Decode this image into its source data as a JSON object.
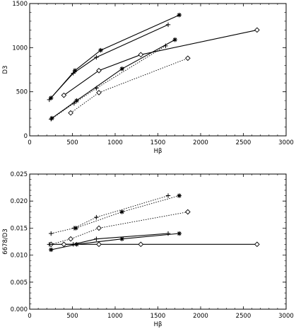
{
  "chart_data": [
    {
      "type": "line",
      "xlabel": "Hβ",
      "ylabel": "D3",
      "xlim": [
        0,
        3000
      ],
      "ylim": [
        0,
        1500
      ],
      "xticks": [
        0,
        500,
        1000,
        1500,
        2000,
        2500,
        3000
      ],
      "yticks": [
        0,
        500,
        1000,
        1500
      ],
      "grid": false,
      "series": [
        {
          "marker": "asterisk",
          "style": "solid",
          "x": [
            250,
            530,
            830,
            1750
          ],
          "y": [
            430,
            740,
            970,
            1370
          ]
        },
        {
          "marker": "plus",
          "style": "solid",
          "x": [
            230,
            510,
            780,
            1620
          ],
          "y": [
            410,
            710,
            890,
            1260
          ]
        },
        {
          "marker": "diamond",
          "style": "solid",
          "x": [
            400,
            810,
            1300,
            2660
          ],
          "y": [
            460,
            740,
            920,
            1200
          ]
        },
        {
          "marker": "asterisk",
          "style": "solid",
          "x": [
            260,
            550,
            1080,
            1700
          ],
          "y": [
            200,
            400,
            760,
            1090
          ]
        },
        {
          "marker": "plus",
          "style": "dotted",
          "x": [
            250,
            520,
            780,
            1590
          ],
          "y": [
            190,
            370,
            540,
            1020
          ]
        },
        {
          "marker": "diamond",
          "style": "dotted",
          "x": [
            480,
            810,
            1850
          ],
          "y": [
            260,
            490,
            880
          ]
        }
      ]
    },
    {
      "type": "line",
      "xlabel": "Hβ",
      "ylabel": "6678/D3",
      "xlim": [
        0,
        3000
      ],
      "ylim": [
        0,
        0.025
      ],
      "xticks": [
        0,
        500,
        1000,
        1500,
        2000,
        2500,
        3000
      ],
      "yticks": [
        "0.000",
        "0.005",
        "0.010",
        "0.015",
        "0.020",
        "0.025"
      ],
      "yvals": [
        0,
        0.005,
        0.01,
        0.015,
        0.02,
        0.025
      ],
      "grid": false,
      "series": [
        {
          "marker": "asterisk",
          "style": "dotted",
          "x": [
            540,
            1080,
            1750
          ],
          "y": [
            0.015,
            0.018,
            0.021
          ]
        },
        {
          "marker": "plus",
          "style": "dotted",
          "x": [
            250,
            520,
            780,
            1620
          ],
          "y": [
            0.014,
            0.015,
            0.017,
            0.021
          ]
        },
        {
          "marker": "diamond",
          "style": "dotted",
          "x": [
            250,
            480,
            810,
            1850
          ],
          "y": [
            0.012,
            0.013,
            0.015,
            0.018
          ]
        },
        {
          "marker": "asterisk",
          "style": "solid",
          "x": [
            250,
            550,
            1080,
            1750
          ],
          "y": [
            0.011,
            0.012,
            0.013,
            0.014
          ]
        },
        {
          "marker": "plus",
          "style": "solid",
          "x": [
            230,
            510,
            780,
            1620
          ],
          "y": [
            0.012,
            0.012,
            0.013,
            0.014
          ]
        },
        {
          "marker": "diamond",
          "style": "solid",
          "x": [
            400,
            810,
            1300,
            2660
          ],
          "y": [
            0.012,
            0.012,
            0.012,
            0.012
          ]
        }
      ]
    }
  ]
}
